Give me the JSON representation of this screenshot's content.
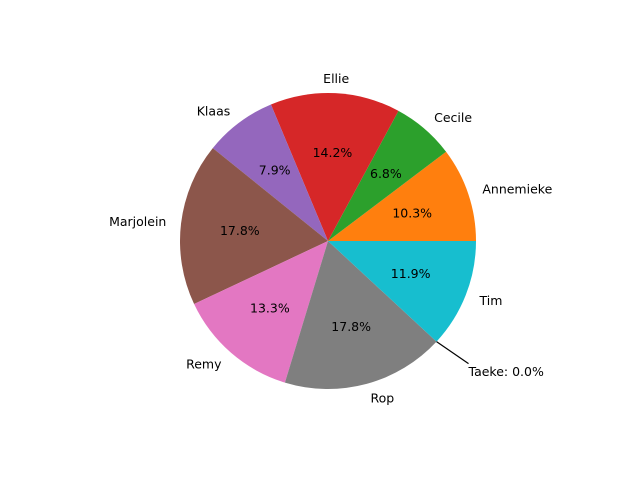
{
  "chart_data": {
    "type": "pie",
    "title": "",
    "start_angle_deg": 0,
    "direction": "counterclockwise",
    "slices": [
      {
        "label": "Annemieke",
        "value": 10.3,
        "pct_label": "10.3%",
        "color": "#ff7f0e"
      },
      {
        "label": "Cecile",
        "value": 6.8,
        "pct_label": "6.8%",
        "color": "#2ca02c"
      },
      {
        "label": "Ellie",
        "value": 14.2,
        "pct_label": "14.2%",
        "color": "#d62728"
      },
      {
        "label": "Klaas",
        "value": 7.9,
        "pct_label": "7.9%",
        "color": "#9467bd"
      },
      {
        "label": "Marjolein",
        "value": 17.8,
        "pct_label": "17.8%",
        "color": "#8c564b"
      },
      {
        "label": "Remy",
        "value": 13.3,
        "pct_label": "13.3%",
        "color": "#e377c2"
      },
      {
        "label": "Rop",
        "value": 17.8,
        "pct_label": "17.8%",
        "color": "#7f7f7f"
      },
      {
        "label": "Taeke",
        "value": 0.0,
        "pct_label": "",
        "color": "#bcbd22"
      },
      {
        "label": "Tim",
        "value": 11.9,
        "pct_label": "11.9%",
        "color": "#17becf"
      }
    ],
    "annotations": [
      {
        "text": "Taeke: 0.0%",
        "target": "Taeke"
      }
    ]
  }
}
